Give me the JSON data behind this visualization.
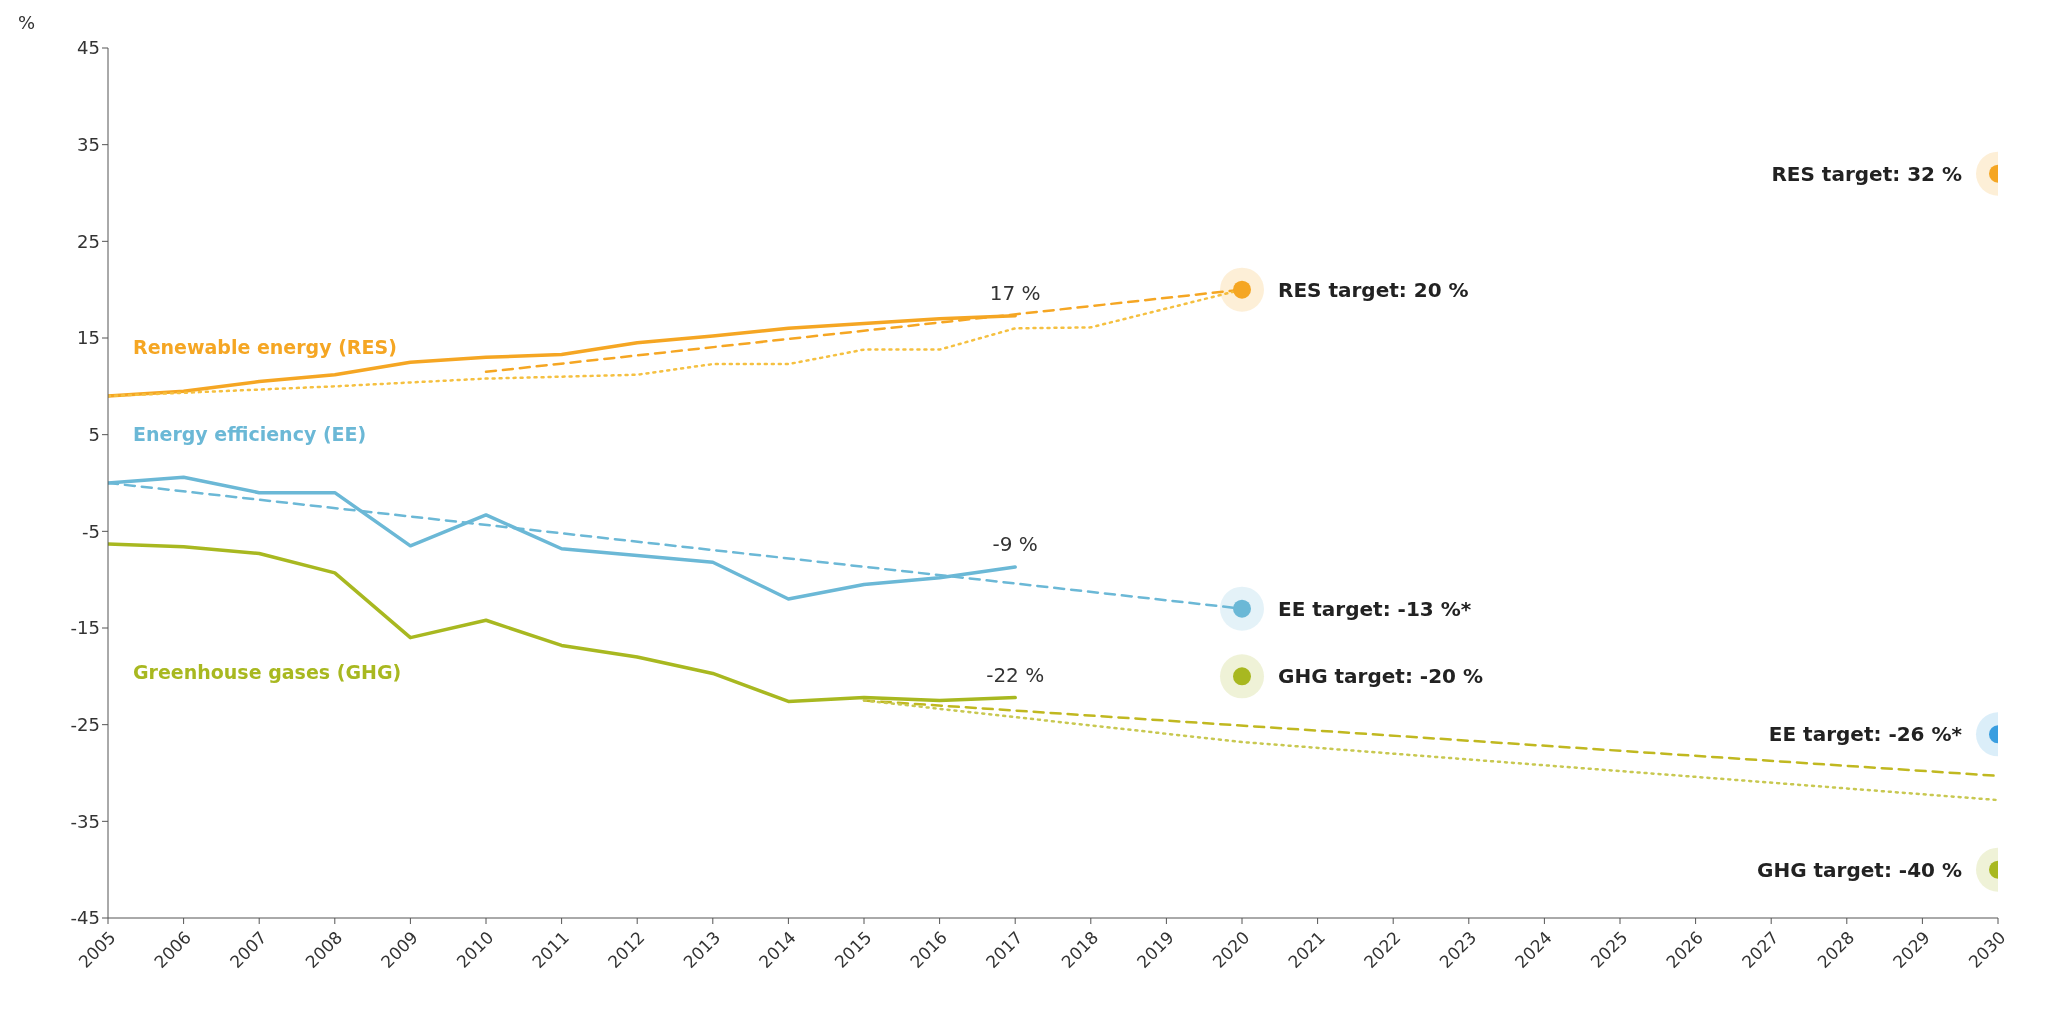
{
  "chart_data": {
    "type": "line",
    "ylabel": "%",
    "xlim": [
      2005,
      2030
    ],
    "xticks": [
      2005,
      2006,
      2007,
      2008,
      2009,
      2010,
      2011,
      2012,
      2013,
      2014,
      2015,
      2016,
      2017,
      2018,
      2019,
      2020,
      2021,
      2022,
      2023,
      2024,
      2025,
      2026,
      2027,
      2028,
      2029,
      2030
    ],
    "ylim": [
      -45,
      45
    ],
    "yticks": [
      -45,
      -35,
      -25,
      -15,
      -5,
      5,
      15,
      25,
      35,
      45
    ],
    "grid": false,
    "legend": false,
    "line_style": "solid",
    "series": [
      {
        "name": "Renewable energy (RES)",
        "color": "#f5a623",
        "x": [
          2005,
          2006,
          2007,
          2008,
          2009,
          2010,
          2011,
          2012,
          2013,
          2014,
          2015,
          2016,
          2017
        ],
        "values": [
          9,
          9.5,
          10.5,
          11.2,
          12.5,
          13,
          13.3,
          14.5,
          15.2,
          16,
          16.5,
          17,
          17.3
        ]
      },
      {
        "color": "#f5a623",
        "x": [
          2010,
          2020
        ],
        "values": [
          11.5,
          20
        ],
        "line_style": "dashed"
      },
      {
        "color": "#f5c040",
        "x": [
          2005,
          2008,
          2010,
          2012,
          2013,
          2014,
          2015,
          2016,
          2017,
          2018,
          2020
        ],
        "values": [
          9,
          10,
          10.8,
          11.2,
          12.3,
          12.3,
          13.8,
          13.8,
          16,
          16.1,
          20
        ],
        "line_style": "dotted"
      },
      {
        "name": "Energy efficiency (EE)",
        "color": "#6bb8d6",
        "x": [
          2005,
          2006,
          2007,
          2008,
          2009,
          2010,
          2011,
          2012,
          2013,
          2014,
          2015,
          2016,
          2017
        ],
        "values": [
          0,
          0.6,
          -1,
          -1,
          -6.5,
          -3.3,
          -6.8,
          -7.5,
          -8.2,
          -12,
          -10.5,
          -9.8,
          -8.7
        ]
      },
      {
        "color": "#6bb8d6",
        "x": [
          2005,
          2020
        ],
        "values": [
          0,
          -13
        ],
        "line_style": "dashed"
      },
      {
        "name": "Greenhouse gases (GHG)",
        "color": "#a8b820",
        "x": [
          2005,
          2006,
          2007,
          2008,
          2009,
          2010,
          2011,
          2012,
          2013,
          2014,
          2015,
          2016,
          2017
        ],
        "values": [
          -6.3,
          -6.6,
          -7.3,
          -9.3,
          -16,
          -14.2,
          -16.8,
          -18,
          -19.7,
          -22.6,
          -22.2,
          -22.5,
          -22.2
        ]
      },
      {
        "color": "#c0b820",
        "x": [
          2015,
          2030
        ],
        "values": [
          -22.5,
          -30.3
        ],
        "line_style": "dashed"
      },
      {
        "color": "#c8c850",
        "x": [
          2015,
          2020,
          2030
        ],
        "values": [
          -22.5,
          -26.8,
          -32.8
        ],
        "line_style": "dotted"
      },
      {
        "type": "scatter",
        "color": "#f5a623",
        "x": [
          2020,
          2030
        ],
        "values": [
          20,
          32
        ],
        "marker": "circle"
      },
      {
        "type": "scatter",
        "color": "#6bb8d6",
        "x": [
          2020
        ],
        "values": [
          -13
        ],
        "marker": "circle"
      },
      {
        "type": "scatter",
        "color": "#3a9ee0",
        "x": [
          2030
        ],
        "values": [
          -26
        ],
        "marker": "circle"
      },
      {
        "type": "scatter",
        "color": "#a8b820",
        "x": [
          2020,
          2030
        ],
        "values": [
          -20,
          -40
        ],
        "marker": "circle"
      }
    ],
    "annotations": [
      {
        "text": "17 %",
        "x": 2017,
        "y": 17.3
      },
      {
        "text": "-9 %",
        "x": 2017,
        "y": -8.7
      },
      {
        "text": "-22 %",
        "x": 2017,
        "y": -22.2
      },
      {
        "text": "RES target: 20 %",
        "x": 2020,
        "y": 20
      },
      {
        "text": "RES target: 32 %",
        "x": 2030,
        "y": 32
      },
      {
        "text": "EE target: -13 %*",
        "x": 2020,
        "y": -13
      },
      {
        "text": "GHG target: -20 %",
        "x": 2020,
        "y": -20
      },
      {
        "text": "EE target: -26 %*",
        "x": 2030,
        "y": -26
      },
      {
        "text": "GHG target: -40 %",
        "x": 2030,
        "y": -40
      }
    ]
  }
}
